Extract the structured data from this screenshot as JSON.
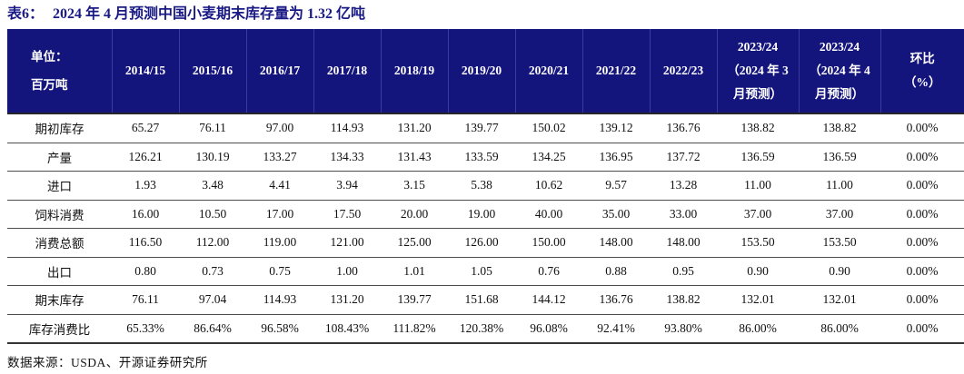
{
  "title": {
    "prefix": "表6：",
    "text": "2024 年 4 月预测中国小麦期末库存量为 1.32 亿吨"
  },
  "table": {
    "unit_label": "单位：\n百万吨",
    "columns": [
      "2014/15",
      "2015/16",
      "2016/17",
      "2017/18",
      "2018/19",
      "2019/20",
      "2020/21",
      "2021/22",
      "2022/23",
      "2023/24\n（2024 年 3\n月预测）",
      "2023/24\n（2024 年 4\n月预测）",
      "环比\n（%）"
    ],
    "rows": [
      {
        "label": "期初库存",
        "values": [
          "65.27",
          "76.11",
          "97.00",
          "114.93",
          "131.20",
          "139.77",
          "150.02",
          "139.12",
          "136.76",
          "138.82",
          "138.82",
          "0.00%"
        ]
      },
      {
        "label": "产量",
        "values": [
          "126.21",
          "130.19",
          "133.27",
          "134.33",
          "131.43",
          "133.59",
          "134.25",
          "136.95",
          "137.72",
          "136.59",
          "136.59",
          "0.00%"
        ]
      },
      {
        "label": "进口",
        "values": [
          "1.93",
          "3.48",
          "4.41",
          "3.94",
          "3.15",
          "5.38",
          "10.62",
          "9.57",
          "13.28",
          "11.00",
          "11.00",
          "0.00%"
        ]
      },
      {
        "label": "饲料消费",
        "values": [
          "16.00",
          "10.50",
          "17.00",
          "17.50",
          "20.00",
          "19.00",
          "40.00",
          "35.00",
          "33.00",
          "37.00",
          "37.00",
          "0.00%"
        ]
      },
      {
        "label": "消费总额",
        "values": [
          "116.50",
          "112.00",
          "119.00",
          "121.00",
          "125.00",
          "126.00",
          "150.00",
          "148.00",
          "148.00",
          "153.50",
          "153.50",
          "0.00%"
        ]
      },
      {
        "label": "出口",
        "values": [
          "0.80",
          "0.73",
          "0.75",
          "1.00",
          "1.01",
          "1.05",
          "0.76",
          "0.88",
          "0.95",
          "0.90",
          "0.90",
          "0.00%"
        ]
      },
      {
        "label": "期末库存",
        "values": [
          "76.11",
          "97.04",
          "114.93",
          "131.20",
          "139.77",
          "151.68",
          "144.12",
          "136.76",
          "138.82",
          "132.01",
          "132.01",
          "0.00%"
        ]
      },
      {
        "label": "库存消费比",
        "values": [
          "65.33%",
          "86.64%",
          "96.58%",
          "108.43%",
          "111.82%",
          "120.38%",
          "96.08%",
          "92.41%",
          "93.80%",
          "86.00%",
          "86.00%",
          "0.00%"
        ]
      }
    ]
  },
  "source": "数据来源：USDA、开源证券研究所",
  "colors": {
    "header_bg": "#14147d",
    "title_text": "#1a1a86",
    "row_border": "#4d4d4d"
  }
}
